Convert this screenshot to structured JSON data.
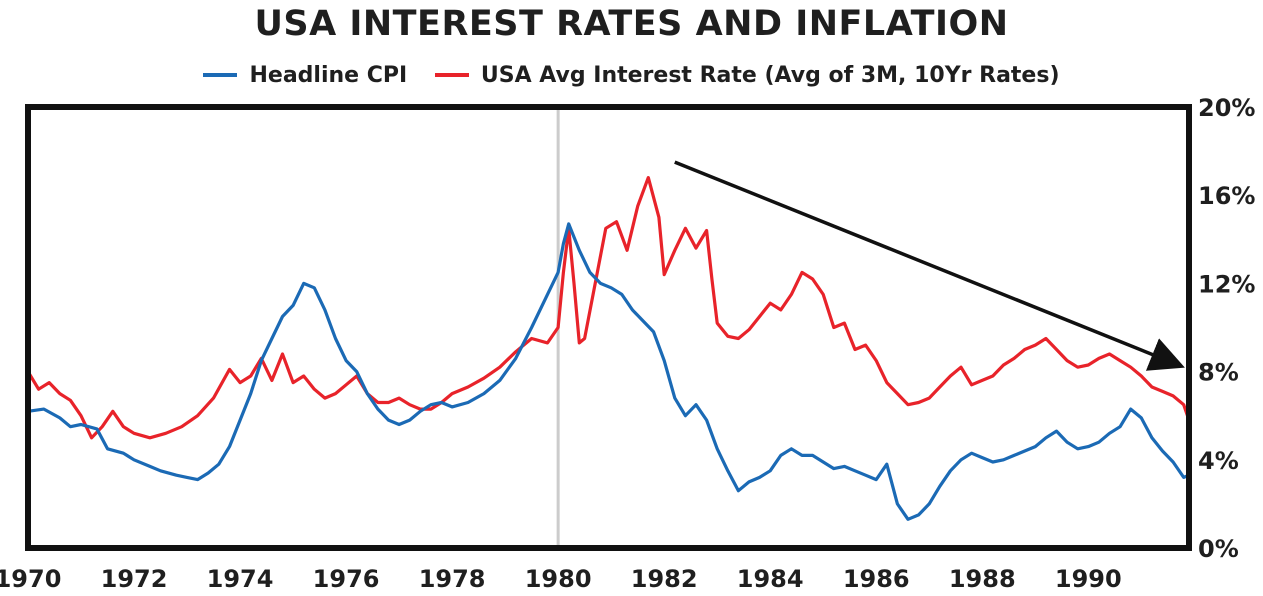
{
  "chart_data": {
    "type": "line",
    "title": "USA INTEREST RATES AND INFLATION",
    "xlabel": "",
    "ylabel": "",
    "xlim": [
      1970,
      1991.9
    ],
    "ylim": [
      0,
      20
    ],
    "x_ticks": [
      "1970",
      "1972",
      "1974",
      "1976",
      "1978",
      "1980",
      "1982",
      "1984",
      "1986",
      "1988",
      "1990"
    ],
    "x_tick_values": [
      1970,
      1972,
      1974,
      1976,
      1978,
      1980,
      1982,
      1984,
      1986,
      1988,
      1990
    ],
    "y_ticks": [
      "0%",
      "4%",
      "8%",
      "12%",
      "16%",
      "20%"
    ],
    "y_tick_values": [
      0,
      4,
      8,
      12,
      16,
      20
    ],
    "y_axis_side": "right",
    "legend_position": "top-center",
    "vertical_marker_x": 1980.0,
    "trend_arrow": {
      "from": [
        1982.2,
        17.5
      ],
      "to": [
        1991.7,
        8.3
      ]
    },
    "series": [
      {
        "name": "Headline CPI",
        "color": "#1b6ab5",
        "points": [
          [
            1970.0,
            6.2
          ],
          [
            1970.3,
            6.3
          ],
          [
            1970.6,
            5.9
          ],
          [
            1970.8,
            5.5
          ],
          [
            1971.0,
            5.6
          ],
          [
            1971.3,
            5.4
          ],
          [
            1971.5,
            4.5
          ],
          [
            1971.8,
            4.3
          ],
          [
            1972.0,
            4.0
          ],
          [
            1972.3,
            3.7
          ],
          [
            1972.5,
            3.5
          ],
          [
            1972.8,
            3.3
          ],
          [
            1973.0,
            3.2
          ],
          [
            1973.2,
            3.1
          ],
          [
            1973.4,
            3.4
          ],
          [
            1973.6,
            3.8
          ],
          [
            1973.8,
            4.6
          ],
          [
            1974.0,
            5.8
          ],
          [
            1974.2,
            7.0
          ],
          [
            1974.4,
            8.5
          ],
          [
            1974.6,
            9.5
          ],
          [
            1974.8,
            10.5
          ],
          [
            1975.0,
            11.0
          ],
          [
            1975.2,
            12.0
          ],
          [
            1975.4,
            11.8
          ],
          [
            1975.6,
            10.8
          ],
          [
            1975.8,
            9.5
          ],
          [
            1976.0,
            8.5
          ],
          [
            1976.2,
            8.0
          ],
          [
            1976.4,
            7.0
          ],
          [
            1976.6,
            6.3
          ],
          [
            1976.8,
            5.8
          ],
          [
            1977.0,
            5.6
          ],
          [
            1977.2,
            5.8
          ],
          [
            1977.4,
            6.2
          ],
          [
            1977.6,
            6.5
          ],
          [
            1977.8,
            6.6
          ],
          [
            1978.0,
            6.4
          ],
          [
            1978.3,
            6.6
          ],
          [
            1978.6,
            7.0
          ],
          [
            1978.9,
            7.6
          ],
          [
            1979.2,
            8.6
          ],
          [
            1979.5,
            10.0
          ],
          [
            1979.8,
            11.5
          ],
          [
            1980.0,
            12.5
          ],
          [
            1980.1,
            13.8
          ],
          [
            1980.2,
            14.7
          ],
          [
            1980.4,
            13.5
          ],
          [
            1980.6,
            12.5
          ],
          [
            1980.8,
            12.0
          ],
          [
            1981.0,
            11.8
          ],
          [
            1981.2,
            11.5
          ],
          [
            1981.4,
            10.8
          ],
          [
            1981.6,
            10.3
          ],
          [
            1981.8,
            9.8
          ],
          [
            1982.0,
            8.5
          ],
          [
            1982.2,
            6.8
          ],
          [
            1982.4,
            6.0
          ],
          [
            1982.6,
            6.5
          ],
          [
            1982.8,
            5.8
          ],
          [
            1983.0,
            4.5
          ],
          [
            1983.2,
            3.5
          ],
          [
            1983.4,
            2.6
          ],
          [
            1983.6,
            3.0
          ],
          [
            1983.8,
            3.2
          ],
          [
            1984.0,
            3.5
          ],
          [
            1984.2,
            4.2
          ],
          [
            1984.4,
            4.5
          ],
          [
            1984.6,
            4.2
          ],
          [
            1984.8,
            4.2
          ],
          [
            1985.0,
            3.9
          ],
          [
            1985.2,
            3.6
          ],
          [
            1985.4,
            3.7
          ],
          [
            1985.6,
            3.5
          ],
          [
            1985.8,
            3.3
          ],
          [
            1986.0,
            3.1
          ],
          [
            1986.2,
            3.8
          ],
          [
            1986.4,
            2.0
          ],
          [
            1986.6,
            1.3
          ],
          [
            1986.8,
            1.5
          ],
          [
            1987.0,
            2.0
          ],
          [
            1987.2,
            2.8
          ],
          [
            1987.4,
            3.5
          ],
          [
            1987.6,
            4.0
          ],
          [
            1987.8,
            4.3
          ],
          [
            1988.0,
            4.1
          ],
          [
            1988.2,
            3.9
          ],
          [
            1988.4,
            4.0
          ],
          [
            1988.6,
            4.2
          ],
          [
            1988.8,
            4.4
          ],
          [
            1989.0,
            4.6
          ],
          [
            1989.2,
            5.0
          ],
          [
            1989.4,
            5.3
          ],
          [
            1989.6,
            4.8
          ],
          [
            1989.8,
            4.5
          ],
          [
            1990.0,
            4.6
          ],
          [
            1990.2,
            4.8
          ],
          [
            1990.4,
            5.2
          ],
          [
            1990.6,
            5.5
          ],
          [
            1990.8,
            6.3
          ],
          [
            1991.0,
            5.9
          ],
          [
            1991.2,
            5.0
          ],
          [
            1991.4,
            4.4
          ],
          [
            1991.6,
            3.9
          ],
          [
            1991.8,
            3.2
          ],
          [
            1991.9,
            3.3
          ]
        ]
      },
      {
        "name": "USA Avg Interest Rate (Avg of 3M, 10Yr Rates)",
        "color": "#e8232a",
        "points": [
          [
            1970.0,
            8.0
          ],
          [
            1970.2,
            7.2
          ],
          [
            1970.4,
            7.5
          ],
          [
            1970.6,
            7.0
          ],
          [
            1970.8,
            6.7
          ],
          [
            1971.0,
            6.0
          ],
          [
            1971.2,
            5.0
          ],
          [
            1971.4,
            5.5
          ],
          [
            1971.6,
            6.2
          ],
          [
            1971.8,
            5.5
          ],
          [
            1972.0,
            5.2
          ],
          [
            1972.3,
            5.0
          ],
          [
            1972.6,
            5.2
          ],
          [
            1972.9,
            5.5
          ],
          [
            1973.2,
            6.0
          ],
          [
            1973.5,
            6.8
          ],
          [
            1973.8,
            8.1
          ],
          [
            1974.0,
            7.5
          ],
          [
            1974.2,
            7.8
          ],
          [
            1974.4,
            8.6
          ],
          [
            1974.6,
            7.6
          ],
          [
            1974.8,
            8.8
          ],
          [
            1975.0,
            7.5
          ],
          [
            1975.2,
            7.8
          ],
          [
            1975.4,
            7.2
          ],
          [
            1975.6,
            6.8
          ],
          [
            1975.8,
            7.0
          ],
          [
            1976.0,
            7.4
          ],
          [
            1976.2,
            7.8
          ],
          [
            1976.4,
            7.0
          ],
          [
            1976.6,
            6.6
          ],
          [
            1976.8,
            6.6
          ],
          [
            1977.0,
            6.8
          ],
          [
            1977.2,
            6.5
          ],
          [
            1977.4,
            6.3
          ],
          [
            1977.6,
            6.3
          ],
          [
            1977.8,
            6.6
          ],
          [
            1978.0,
            7.0
          ],
          [
            1978.3,
            7.3
          ],
          [
            1978.6,
            7.7
          ],
          [
            1978.9,
            8.2
          ],
          [
            1979.2,
            8.9
          ],
          [
            1979.5,
            9.5
          ],
          [
            1979.8,
            9.3
          ],
          [
            1980.0,
            10.0
          ],
          [
            1980.1,
            12.5
          ],
          [
            1980.2,
            14.5
          ],
          [
            1980.3,
            12.0
          ],
          [
            1980.4,
            9.3
          ],
          [
            1980.5,
            9.5
          ],
          [
            1980.7,
            12.0
          ],
          [
            1980.9,
            14.5
          ],
          [
            1981.1,
            14.8
          ],
          [
            1981.3,
            13.5
          ],
          [
            1981.5,
            15.5
          ],
          [
            1981.7,
            16.8
          ],
          [
            1981.9,
            15.0
          ],
          [
            1982.0,
            12.4
          ],
          [
            1982.2,
            13.5
          ],
          [
            1982.4,
            14.5
          ],
          [
            1982.6,
            13.6
          ],
          [
            1982.8,
            14.4
          ],
          [
            1982.9,
            12.2
          ],
          [
            1983.0,
            10.2
          ],
          [
            1983.2,
            9.6
          ],
          [
            1983.4,
            9.5
          ],
          [
            1983.6,
            9.9
          ],
          [
            1983.8,
            10.5
          ],
          [
            1984.0,
            11.1
          ],
          [
            1984.2,
            10.8
          ],
          [
            1984.4,
            11.5
          ],
          [
            1984.6,
            12.5
          ],
          [
            1984.8,
            12.2
          ],
          [
            1985.0,
            11.5
          ],
          [
            1985.2,
            10.0
          ],
          [
            1985.4,
            10.2
          ],
          [
            1985.6,
            9.0
          ],
          [
            1985.8,
            9.2
          ],
          [
            1986.0,
            8.5
          ],
          [
            1986.2,
            7.5
          ],
          [
            1986.4,
            7.0
          ],
          [
            1986.6,
            6.5
          ],
          [
            1986.8,
            6.6
          ],
          [
            1987.0,
            6.8
          ],
          [
            1987.2,
            7.3
          ],
          [
            1987.4,
            7.8
          ],
          [
            1987.6,
            8.2
          ],
          [
            1987.8,
            7.4
          ],
          [
            1988.0,
            7.6
          ],
          [
            1988.2,
            7.8
          ],
          [
            1988.4,
            8.3
          ],
          [
            1988.6,
            8.6
          ],
          [
            1988.8,
            9.0
          ],
          [
            1989.0,
            9.2
          ],
          [
            1989.2,
            9.5
          ],
          [
            1989.4,
            9.0
          ],
          [
            1989.6,
            8.5
          ],
          [
            1989.8,
            8.2
          ],
          [
            1990.0,
            8.3
          ],
          [
            1990.2,
            8.6
          ],
          [
            1990.4,
            8.8
          ],
          [
            1990.6,
            8.5
          ],
          [
            1990.8,
            8.2
          ],
          [
            1991.0,
            7.8
          ],
          [
            1991.2,
            7.3
          ],
          [
            1991.4,
            7.1
          ],
          [
            1991.6,
            6.9
          ],
          [
            1991.8,
            6.5
          ],
          [
            1991.9,
            5.8
          ]
        ]
      }
    ]
  }
}
